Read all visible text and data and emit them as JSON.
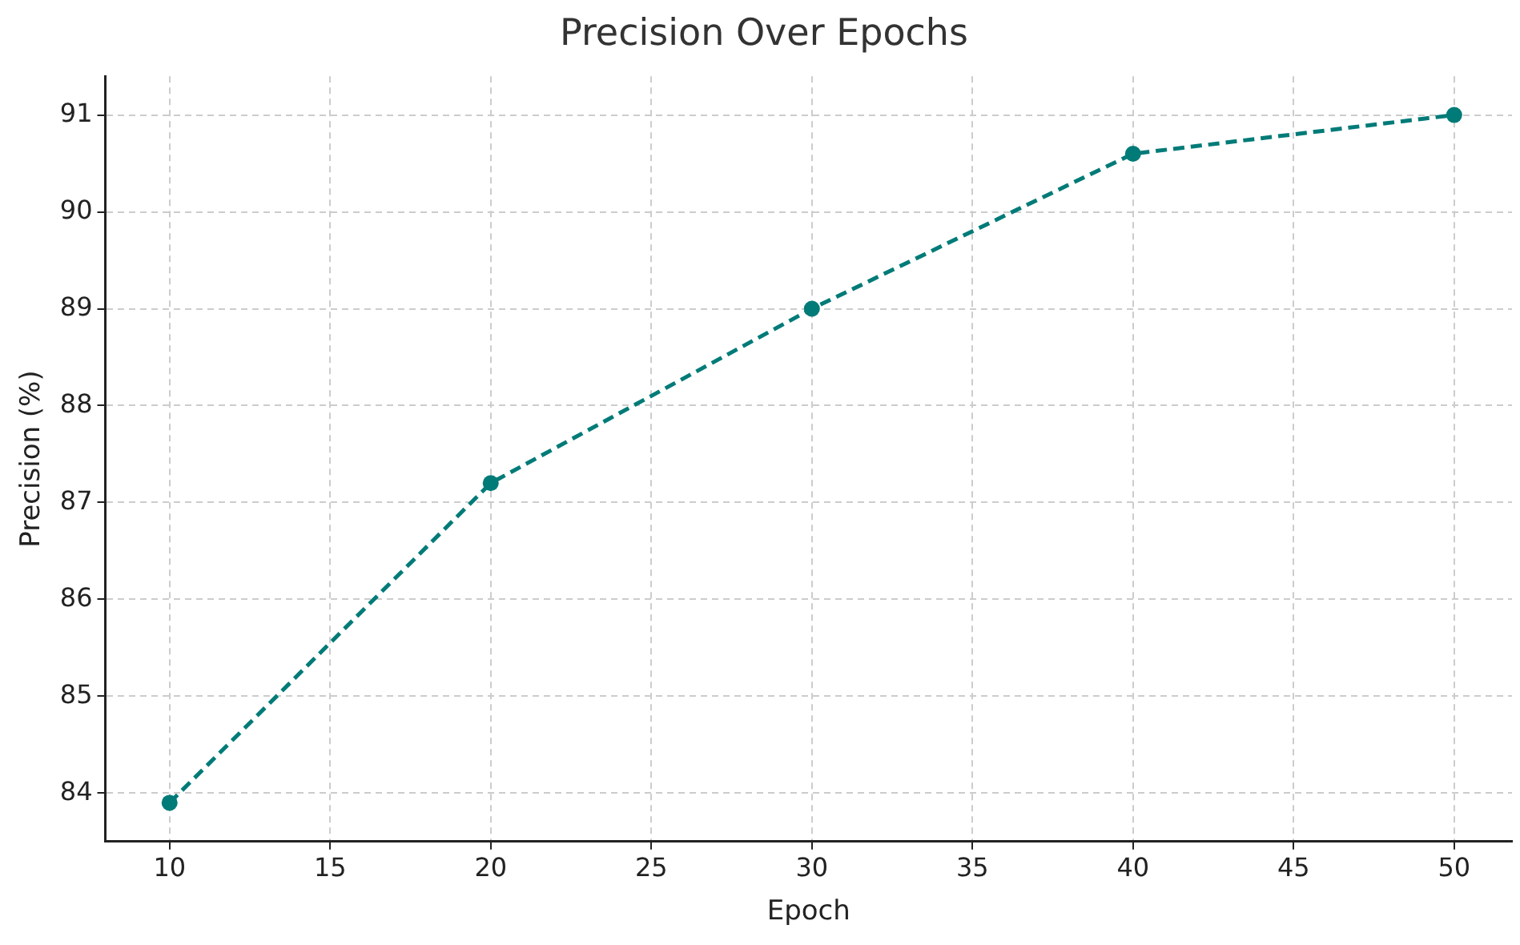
{
  "chart_data": {
    "type": "line",
    "title": "Precision Over Epochs",
    "xlabel": "Epoch",
    "ylabel": "Precision (%)",
    "x": [
      10,
      20,
      30,
      40,
      50
    ],
    "series": [
      {
        "color": "#007b78",
        "values": [
          83.9,
          87.2,
          89.0,
          90.6,
          91.0
        ]
      }
    ],
    "xlim": [
      8,
      51.8
    ],
    "xticks": [
      10,
      15,
      20,
      25,
      30,
      35,
      40,
      45,
      50
    ],
    "ylim": [
      83.5,
      91.4
    ],
    "yticks": [
      84,
      85,
      86,
      87,
      88,
      89,
      90,
      91
    ],
    "grid": true,
    "marker": "circle",
    "line_style": "dashed",
    "legend": false
  }
}
